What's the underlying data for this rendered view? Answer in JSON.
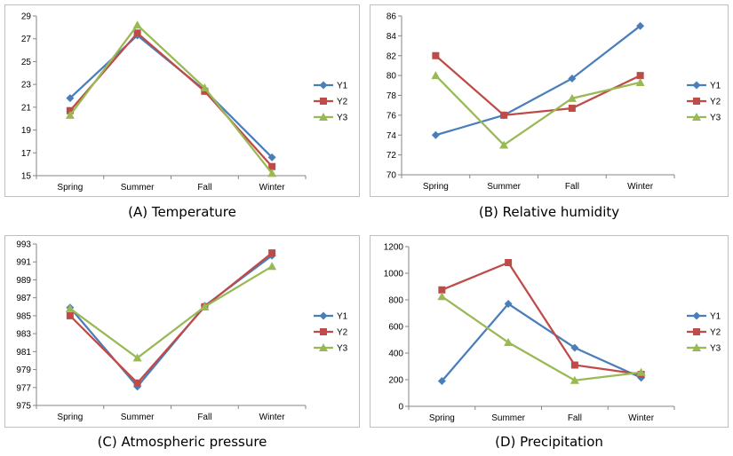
{
  "legend_labels": [
    "Y1",
    "Y2",
    "Y3"
  ],
  "series_colors": {
    "Y1": "#4A7EBB",
    "Y2": "#BE4B48",
    "Y3": "#98B954"
  },
  "marker_shapes": {
    "Y1": "diamond",
    "Y2": "square",
    "Y3": "triangle"
  },
  "captions": [
    "(A) Temperature",
    "(B) Relative humidity",
    "(C) Atmospheric pressure",
    "(D) Precipitation"
  ],
  "chart_data": [
    {
      "type": "line",
      "title": "",
      "categories": [
        "Spring",
        "Summer",
        "Fall",
        "Winter"
      ],
      "ylim": [
        15,
        29
      ],
      "yticks": [
        15,
        17,
        19,
        21,
        23,
        25,
        27,
        29
      ],
      "grid": false,
      "legend": "right",
      "series": [
        {
          "name": "Y1",
          "values": [
            21.8,
            27.3,
            22.5,
            16.6
          ]
        },
        {
          "name": "Y2",
          "values": [
            20.7,
            27.5,
            22.4,
            15.8
          ]
        },
        {
          "name": "Y3",
          "values": [
            20.3,
            28.2,
            22.7,
            15.2
          ]
        }
      ]
    },
    {
      "type": "line",
      "title": "",
      "categories": [
        "Spring",
        "Summer",
        "Fall",
        "Winter"
      ],
      "ylim": [
        70,
        86
      ],
      "yticks": [
        70,
        72,
        74,
        76,
        78,
        80,
        82,
        84,
        86
      ],
      "grid": false,
      "legend": "right",
      "series": [
        {
          "name": "Y1",
          "values": [
            74,
            76,
            79.7,
            85
          ]
        },
        {
          "name": "Y2",
          "values": [
            82,
            76,
            76.7,
            80
          ]
        },
        {
          "name": "Y3",
          "values": [
            80,
            73,
            77.7,
            79.3
          ]
        }
      ]
    },
    {
      "type": "line",
      "title": "",
      "categories": [
        "Spring",
        "Summer",
        "Fall",
        "Winter"
      ],
      "ylim": [
        975,
        993
      ],
      "yticks": [
        975,
        977,
        979,
        981,
        983,
        985,
        987,
        989,
        991,
        993
      ],
      "grid": false,
      "legend": "right",
      "series": [
        {
          "name": "Y1",
          "values": [
            985.9,
            977.1,
            986.1,
            991.7
          ]
        },
        {
          "name": "Y2",
          "values": [
            985,
            977.5,
            986,
            992
          ]
        },
        {
          "name": "Y3",
          "values": [
            985.8,
            980.3,
            986,
            990.5
          ]
        }
      ]
    },
    {
      "type": "line",
      "title": "",
      "categories": [
        "Spring",
        "Summer",
        "Fall",
        "Winter"
      ],
      "ylim": [
        0,
        1200
      ],
      "yticks": [
        0,
        200,
        400,
        600,
        800,
        1000,
        1200
      ],
      "grid": false,
      "legend": "right",
      "series": [
        {
          "name": "Y1",
          "values": [
            190,
            770,
            440,
            215
          ]
        },
        {
          "name": "Y2",
          "values": [
            875,
            1080,
            310,
            240
          ]
        },
        {
          "name": "Y3",
          "values": [
            825,
            480,
            195,
            255
          ]
        }
      ]
    }
  ]
}
